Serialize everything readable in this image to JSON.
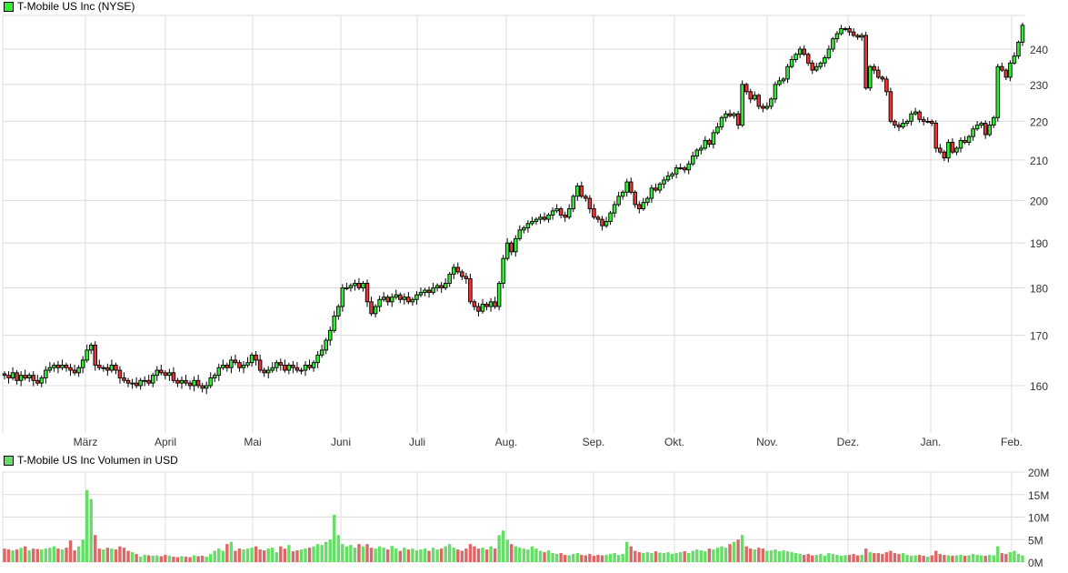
{
  "chart_data": [
    {
      "type": "candlestick",
      "title": "T-Mobile US Inc (NYSE)",
      "y_scale": "log",
      "ylim": [
        153,
        248
      ],
      "y_ticks": [
        160,
        170,
        180,
        190,
        200,
        210,
        220,
        230,
        240
      ],
      "x_tick_labels": [
        "März",
        "April",
        "Mai",
        "Juni",
        "Juli",
        "Aug.",
        "Sep.",
        "Okt.",
        "Nov.",
        "Dez.",
        "Jan.",
        "Feb."
      ],
      "grid": true,
      "legend": "top-left",
      "colors": {
        "up": "#33ee33",
        "down": "#ee3333"
      },
      "close": [
        162,
        161.5,
        162.5,
        161,
        162,
        161.5,
        162,
        161,
        160.5,
        161.5,
        163,
        163.5,
        164,
        163.5,
        164,
        163.5,
        163,
        162.5,
        163.5,
        165,
        167,
        168,
        164,
        163.5,
        163.5,
        163,
        164,
        163,
        161.5,
        161,
        160.5,
        160.5,
        160,
        161,
        161,
        160.5,
        162,
        163,
        162.5,
        162,
        162.5,
        161,
        160.5,
        161,
        160.5,
        160,
        161,
        160,
        159.5,
        160,
        161.5,
        162,
        163.5,
        164,
        163.5,
        165,
        164.5,
        163.5,
        164,
        164.5,
        166,
        165,
        163,
        162.5,
        163,
        163.5,
        164.5,
        164,
        163,
        164,
        163.5,
        163,
        163,
        164,
        163.5,
        164.5,
        166,
        167,
        169,
        171,
        174,
        176,
        180,
        180,
        180.5,
        181,
        180,
        181,
        177,
        174.5,
        176,
        177.5,
        178,
        177,
        178,
        178.5,
        177.5,
        178,
        177,
        177.5,
        178.5,
        179,
        179.5,
        179,
        180,
        180.5,
        180,
        181,
        183,
        184.5,
        183.5,
        182.5,
        182,
        177,
        176,
        175,
        176.5,
        176,
        177,
        176,
        181,
        186.5,
        190,
        188,
        191,
        193,
        193.5,
        194.5,
        195,
        195.5,
        196,
        195.5,
        196.5,
        197.5,
        198,
        196.5,
        196,
        198,
        201,
        203.5,
        201,
        200.5,
        198,
        196,
        195.5,
        194,
        195,
        197,
        199,
        201,
        202,
        204.5,
        202,
        199,
        198,
        199.5,
        200.5,
        203,
        202.5,
        204,
        205,
        206,
        206.5,
        208,
        208,
        207.5,
        209,
        211,
        212.5,
        213,
        215,
        214,
        217,
        218.5,
        221,
        222,
        221.5,
        222,
        219,
        230,
        228,
        226,
        227,
        224,
        223.5,
        224,
        226,
        230,
        231,
        231.5,
        235,
        237,
        238.5,
        240,
        238.5,
        236,
        234,
        235,
        236,
        237.5,
        240,
        243,
        244.5,
        246,
        246,
        245,
        244,
        243.5,
        244,
        229,
        235,
        234,
        232,
        231.5,
        228,
        220,
        219,
        218.5,
        219.5,
        220,
        222,
        222.5,
        220.5,
        220,
        220,
        219.5,
        213,
        212,
        210.5,
        214.5,
        212,
        213,
        215,
        214.5,
        216,
        218,
        219,
        219.5,
        216.5,
        219,
        221,
        235,
        234,
        232,
        236,
        238,
        242,
        247
      ]
    },
    {
      "type": "bar",
      "title": "T-Mobile US Inc Volumen in USD",
      "ylim": [
        0,
        20
      ],
      "y_tick_labels": [
        "0M",
        "5M",
        "10M",
        "15M",
        "20M"
      ],
      "grid": true,
      "colors": {
        "up": "#66dd66",
        "down": "#dd6666"
      },
      "values": [
        3,
        2.8,
        2.6,
        2.8,
        3.2,
        3.5,
        2.6,
        3,
        2.9,
        2.8,
        3,
        3.2,
        3.5,
        3,
        2.8,
        3.2,
        4.8,
        2.6,
        3.5,
        5,
        16,
        14,
        6,
        3,
        2.8,
        3.2,
        3,
        2.8,
        3.5,
        3.2,
        2.5,
        2.2,
        1.8,
        1.2,
        1.6,
        1.5,
        1.4,
        1.5,
        1.3,
        1.6,
        1.4,
        1.2,
        1.1,
        1.3,
        1.2,
        1.1,
        1.5,
        1.3,
        1.4,
        1.2,
        1.8,
        2.5,
        3,
        2.5,
        4,
        4.5,
        2.5,
        3,
        2.8,
        3,
        3.2,
        3.5,
        2.8,
        2.6,
        3,
        3.2,
        2.2,
        3.5,
        3,
        3.8,
        2.4,
        2.6,
        2.8,
        3,
        3.2,
        3.5,
        4,
        3.8,
        4.5,
        5,
        10.5,
        6,
        4,
        3.5,
        3.8,
        3.2,
        4,
        3.5,
        4,
        3.2,
        3,
        3.5,
        3.2,
        2.8,
        3.6,
        3,
        2.5,
        3.2,
        2.8,
        3,
        2.6,
        2.8,
        3,
        2.5,
        3.2,
        2.8,
        3,
        3.5,
        4,
        3.2,
        2.8,
        2.5,
        3,
        4,
        3.5,
        3,
        3.2,
        2.8,
        3.5,
        3,
        6,
        7,
        5,
        4,
        3.5,
        3.2,
        3,
        2.8,
        3.5,
        3,
        2.5,
        2.2,
        2.6,
        2,
        1.8,
        2,
        1.6,
        1.5,
        1.8,
        2,
        1.6,
        1.5,
        1.8,
        1.4,
        1.6,
        1.5,
        1.6,
        1.8,
        2,
        1.6,
        1.8,
        4.5,
        3.5,
        2.5,
        2.2,
        2,
        2.2,
        2,
        2.4,
        2.1,
        2,
        2.2,
        1.8,
        2,
        2.2,
        2.4,
        2,
        2.5,
        2.8,
        2.6,
        2.4,
        3,
        2.8,
        3.2,
        3.5,
        3.2,
        4,
        4.5,
        5,
        6,
        3.5,
        3,
        2.8,
        3.2,
        3,
        2.5,
        2.6,
        2.8,
        2.4,
        2.6,
        2.4,
        2.2,
        2,
        1.8,
        1.6,
        1.8,
        1.5,
        1.6,
        1.8,
        1.4,
        2,
        1.8,
        1.6,
        1.4,
        1.5,
        1.6,
        1.8,
        1.5,
        1.6,
        3,
        2.2,
        2,
        2,
        1.8,
        2.2,
        2.5,
        2,
        1.8,
        2,
        1.6,
        1.4,
        1.5,
        1.6,
        1.4,
        1.2,
        1.5,
        2.5,
        1.8,
        1.6,
        1.5,
        1.4,
        1.5,
        1.6,
        1.4,
        1.5,
        1.8,
        1.6,
        1.5,
        1.4,
        1.6,
        1.5,
        3.5,
        2,
        1.8,
        2.2,
        2.5,
        1.8,
        1.5
      ]
    }
  ]
}
